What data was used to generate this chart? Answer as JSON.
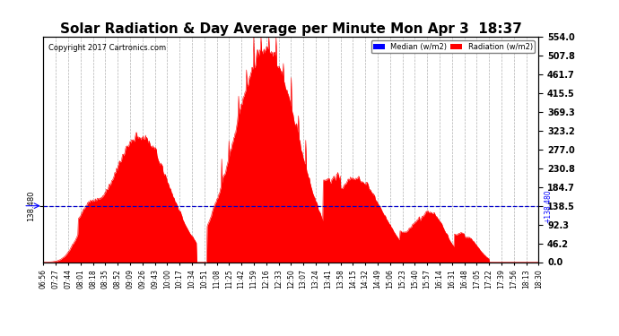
{
  "title": "Solar Radiation & Day Average per Minute Mon Apr 3  18:37",
  "copyright": "Copyright 2017 Cartronics.com",
  "ylabel_right_values": [
    0.0,
    46.2,
    92.3,
    138.5,
    184.7,
    230.8,
    277.0,
    323.2,
    369.3,
    415.5,
    461.7,
    507.8,
    554.0
  ],
  "ymax": 554.0,
  "ymin": 0.0,
  "median_value": 138.48,
  "median_label": "138.480",
  "legend_median_color": "#0000ff",
  "legend_radiation_color": "#ff0000",
  "fill_color": "#ff0000",
  "median_line_color": "#0000cc",
  "grid_color": "#aaaaaa",
  "bg_color": "#ffffff",
  "title_fontsize": 11,
  "x_tick_labels": [
    "06:56",
    "07:27",
    "07:44",
    "08:01",
    "08:18",
    "08:35",
    "08:52",
    "09:09",
    "09:26",
    "09:43",
    "10:00",
    "10:17",
    "10:34",
    "10:51",
    "11:08",
    "11:25",
    "11:42",
    "11:59",
    "12:16",
    "12:33",
    "12:50",
    "13:07",
    "13:24",
    "13:41",
    "13:58",
    "14:15",
    "14:32",
    "14:49",
    "15:06",
    "15:23",
    "15:40",
    "15:57",
    "16:14",
    "16:31",
    "16:48",
    "17:05",
    "17:22",
    "17:39",
    "17:56",
    "18:13",
    "18:30"
  ],
  "n_points": 820
}
